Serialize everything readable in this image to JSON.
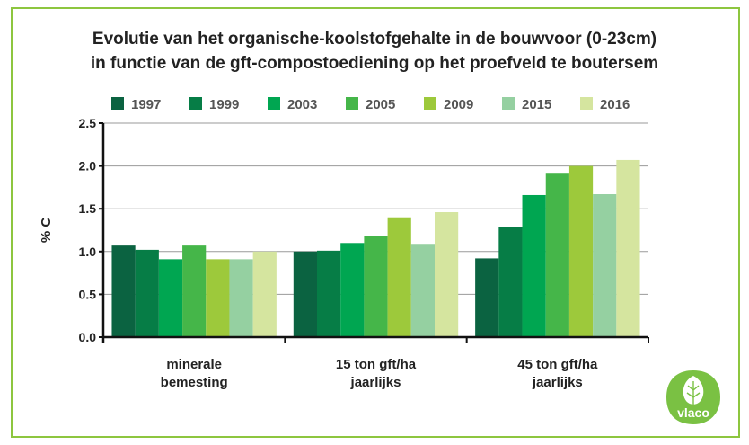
{
  "chart_data": {
    "type": "bar",
    "title": "Evolutie van het organische-koolstofgehalte in de bouwvoor (0-23cm)",
    "subtitle": "in functie van de gft-compostoediening op het proefveld te boutersem",
    "ylabel": "% C",
    "xlabel": "",
    "ylim": [
      0,
      2.5
    ],
    "yticks": [
      "0.0",
      "0.5",
      "1.0",
      "1.5",
      "2.0",
      "2.5"
    ],
    "grid": true,
    "legend_position": "top",
    "categories": [
      [
        "minerale",
        "bemesting"
      ],
      [
        "15 ton gft/ha",
        "jaarlijks"
      ],
      [
        "45 ton gft/ha",
        "jaarlijks"
      ]
    ],
    "series": [
      {
        "name": "1997",
        "color": "#0b6341",
        "values": [
          1.07,
          1.0,
          0.92
        ]
      },
      {
        "name": "1999",
        "color": "#067d46",
        "values": [
          1.02,
          1.01,
          1.29
        ]
      },
      {
        "name": "2003",
        "color": "#00a651",
        "values": [
          0.91,
          1.1,
          1.66
        ]
      },
      {
        "name": "2005",
        "color": "#45b649",
        "values": [
          1.07,
          1.18,
          1.92
        ]
      },
      {
        "name": "2009",
        "color": "#9dc93b",
        "values": [
          0.91,
          1.4,
          2.0
        ]
      },
      {
        "name": "2015",
        "color": "#95d0a1",
        "values": [
          0.91,
          1.09,
          1.67
        ]
      },
      {
        "name": "2016",
        "color": "#d5e59f",
        "values": [
          1.0,
          1.46,
          2.07
        ]
      }
    ]
  },
  "logo": {
    "text": "vlaco",
    "color": "#7ac143"
  },
  "frame_color": "#8dc63f"
}
